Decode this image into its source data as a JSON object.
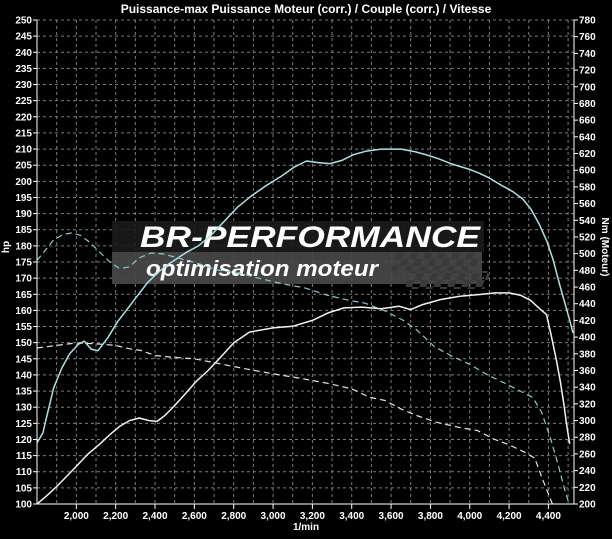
{
  "chart_data": {
    "type": "line",
    "title": "Puissance-max Puissance Moteur (corr.) / Couple (corr.) / Vitesse",
    "xlabel": "1/min",
    "ylabel_left": "hp",
    "ylabel_right": "Nm (Moteur)",
    "x_range": [
      1800,
      4530
    ],
    "y_left_range": [
      100,
      250
    ],
    "y_right_range": [
      200,
      780
    ],
    "grid": {
      "x_step_rpm": 100,
      "y_step_hp": 5,
      "color": "#7d7d7d",
      "on": true
    },
    "legend": "none",
    "x_tick_labels": [
      "2,000",
      "2,200",
      "2,400",
      "2,600",
      "2,800",
      "3,000",
      "3,200",
      "3,400",
      "3,600",
      "3,800",
      "4,000",
      "4,200",
      "4,400"
    ],
    "y_left_tick_labels": [
      "250",
      "245",
      "240",
      "235",
      "230",
      "225",
      "220",
      "215",
      "210",
      "205",
      "200",
      "195",
      "190",
      "185",
      "180",
      "175",
      "170",
      "165",
      "160",
      "155",
      "150",
      "145",
      "140",
      "135",
      "130",
      "125",
      "120",
      "115",
      "110",
      "105",
      "100"
    ],
    "y_right_tick_labels": [
      "780",
      "760",
      "740",
      "720",
      "700",
      "680",
      "660",
      "640",
      "620",
      "600",
      "580",
      "560",
      "540",
      "520",
      "500",
      "480",
      "460",
      "440",
      "420",
      "400",
      "380",
      "360",
      "340",
      "320",
      "300",
      "280",
      "260",
      "240",
      "220",
      "200"
    ],
    "series": [
      {
        "name": "puissance-moteur-corr",
        "style": "solid",
        "color": "#aee0e0",
        "axis": "hp",
        "peak": {
          "rpm": 3600,
          "value": 210,
          "unit": "hp"
        },
        "points": [
          [
            1800,
            119
          ],
          [
            1830,
            122
          ],
          [
            1845,
            126
          ],
          [
            1885,
            136
          ],
          [
            1925,
            142
          ],
          [
            1965,
            146.5
          ],
          [
            2010,
            149.5
          ],
          [
            2040,
            150.5
          ],
          [
            2075,
            148
          ],
          [
            2110,
            147.5
          ],
          [
            2160,
            151.5
          ],
          [
            2210,
            156.5
          ],
          [
            2260,
            160.5
          ],
          [
            2310,
            164.5
          ],
          [
            2360,
            168.5
          ],
          [
            2410,
            171.5
          ],
          [
            2460,
            174
          ],
          [
            2510,
            176
          ],
          [
            2560,
            178
          ],
          [
            2620,
            180
          ],
          [
            2680,
            183
          ],
          [
            2750,
            187.5
          ],
          [
            2820,
            192
          ],
          [
            2890,
            195.5
          ],
          [
            2960,
            198.5
          ],
          [
            3040,
            201.5
          ],
          [
            3110,
            204.5
          ],
          [
            3170,
            206.3
          ],
          [
            3230,
            205.8
          ],
          [
            3290,
            205.5
          ],
          [
            3350,
            206.5
          ],
          [
            3410,
            208.3
          ],
          [
            3470,
            209.3
          ],
          [
            3550,
            210
          ],
          [
            3650,
            210
          ],
          [
            3720,
            209.2
          ],
          [
            3780,
            208.2
          ],
          [
            3840,
            207
          ],
          [
            3900,
            205.6
          ],
          [
            3950,
            204.6
          ],
          [
            4000,
            203.7
          ],
          [
            4050,
            202.5
          ],
          [
            4100,
            201
          ],
          [
            4160,
            198.8
          ],
          [
            4220,
            196.8
          ],
          [
            4270,
            194.5
          ],
          [
            4310,
            191.5
          ],
          [
            4355,
            186.5
          ],
          [
            4395,
            181
          ],
          [
            4425,
            175.5
          ],
          [
            4455,
            168.5
          ],
          [
            4485,
            162
          ],
          [
            4510,
            156.5
          ],
          [
            4525,
            153
          ]
        ]
      },
      {
        "name": "couple-corr",
        "style": "solid",
        "color": "#f2f2f2",
        "axis": "nm",
        "peak": {
          "rpm": 4150,
          "value": 453,
          "unit": "Nm"
        },
        "points": [
          [
            1800,
            200
          ],
          [
            1850,
            210
          ],
          [
            1900,
            221
          ],
          [
            1950,
            233
          ],
          [
            2000,
            245
          ],
          [
            2060,
            260
          ],
          [
            2120,
            272
          ],
          [
            2170,
            283
          ],
          [
            2220,
            293
          ],
          [
            2270,
            300
          ],
          [
            2320,
            303
          ],
          [
            2370,
            300
          ],
          [
            2410,
            299
          ],
          [
            2450,
            306
          ],
          [
            2500,
            318
          ],
          [
            2550,
            331
          ],
          [
            2610,
            347
          ],
          [
            2670,
            360
          ],
          [
            2730,
            375
          ],
          [
            2800,
            393
          ],
          [
            2880,
            406
          ],
          [
            3000,
            411
          ],
          [
            3100,
            413
          ],
          [
            3200,
            420
          ],
          [
            3280,
            429
          ],
          [
            3360,
            435
          ],
          [
            3450,
            436
          ],
          [
            3550,
            434
          ],
          [
            3640,
            437
          ],
          [
            3700,
            433
          ],
          [
            3760,
            439
          ],
          [
            3850,
            445
          ],
          [
            3950,
            449
          ],
          [
            4050,
            451
          ],
          [
            4130,
            453
          ],
          [
            4200,
            453
          ],
          [
            4260,
            450
          ],
          [
            4310,
            444
          ],
          [
            4355,
            434
          ],
          [
            4390,
            427
          ],
          [
            4415,
            401
          ],
          [
            4440,
            373
          ],
          [
            4462,
            345
          ],
          [
            4478,
            320
          ],
          [
            4492,
            296
          ],
          [
            4508,
            272
          ]
        ]
      },
      {
        "name": "courbe-pointillee-cyan",
        "style": "dashed",
        "color": "#93c9c9",
        "axis": "hp",
        "points": [
          [
            1800,
            175.5
          ],
          [
            1840,
            178.5
          ],
          [
            1880,
            181.5
          ],
          [
            1930,
            183.5
          ],
          [
            1975,
            184
          ],
          [
            2020,
            183.3
          ],
          [
            2070,
            181
          ],
          [
            2120,
            178
          ],
          [
            2170,
            175
          ],
          [
            2220,
            173
          ],
          [
            2270,
            173.5
          ],
          [
            2320,
            176.3
          ],
          [
            2380,
            177.8
          ],
          [
            2440,
            177.5
          ],
          [
            2520,
            176.2
          ],
          [
            2620,
            174.5
          ],
          [
            2720,
            172.5
          ],
          [
            2830,
            171.5
          ],
          [
            2940,
            169.8
          ],
          [
            3050,
            168.2
          ],
          [
            3160,
            167
          ],
          [
            3270,
            164.8
          ],
          [
            3380,
            163.2
          ],
          [
            3470,
            162.2
          ],
          [
            3570,
            159.8
          ],
          [
            3660,
            157
          ],
          [
            3730,
            154
          ],
          [
            3820,
            148.8
          ],
          [
            3910,
            145.8
          ],
          [
            4000,
            143.3
          ],
          [
            4090,
            140
          ],
          [
            4170,
            137.7
          ],
          [
            4250,
            135.2
          ],
          [
            4320,
            133
          ],
          [
            4365,
            128.5
          ],
          [
            4410,
            120.5
          ],
          [
            4450,
            112
          ],
          [
            4480,
            105
          ],
          [
            4505,
            100
          ]
        ]
      },
      {
        "name": "courbe-pointillee-blanche",
        "style": "dashed",
        "color": "#e4e4e4",
        "axis": "nm",
        "points": [
          [
            1800,
            387
          ],
          [
            1900,
            390
          ],
          [
            2000,
            393
          ],
          [
            2100,
            392
          ],
          [
            2200,
            390
          ],
          [
            2270,
            386
          ],
          [
            2330,
            384
          ],
          [
            2400,
            378
          ],
          [
            2480,
            376
          ],
          [
            2600,
            374
          ],
          [
            2730,
            368
          ],
          [
            2860,
            362
          ],
          [
            3000,
            356
          ],
          [
            3130,
            351
          ],
          [
            3270,
            345
          ],
          [
            3400,
            338
          ],
          [
            3490,
            328
          ],
          [
            3570,
            324
          ],
          [
            3650,
            314
          ],
          [
            3730,
            306
          ],
          [
            3830,
            298
          ],
          [
            3940,
            292
          ],
          [
            4040,
            288
          ],
          [
            4120,
            278
          ],
          [
            4200,
            271
          ],
          [
            4280,
            262
          ],
          [
            4330,
            255
          ],
          [
            4370,
            230
          ],
          [
            4420,
            200
          ]
        ]
      }
    ]
  },
  "watermark": {
    "line1": "BR-PERFORMANCE",
    "line2": "optimisation moteur"
  },
  "colors": {
    "background": "#000000",
    "axis": "#ffffff",
    "grid": "#7d7d7d",
    "title": "#ffffff",
    "watermark_band_upper": "#1b1b1b",
    "watermark_band_lower": "#484848",
    "watermark_text_upper": "#3d3d3d",
    "watermark_text_lower": "#161616",
    "checker_square": "#3a3a3a"
  }
}
